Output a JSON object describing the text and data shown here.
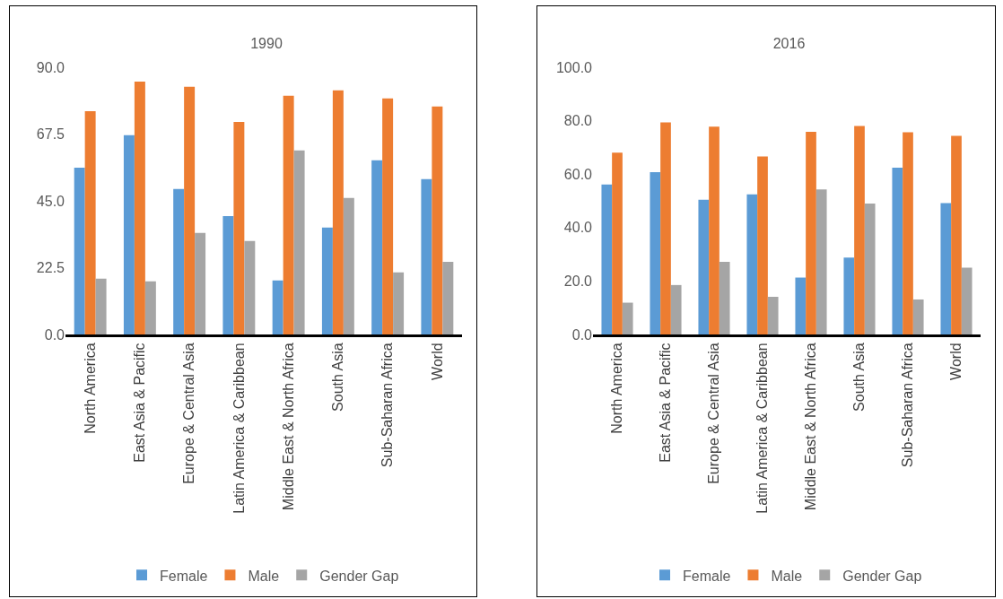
{
  "chart_data": [
    {
      "type": "bar",
      "title": "1990",
      "categories": [
        "North America",
        "East Asia & Pacific",
        "Europe & Central Asia",
        "Latin America & Caribbean",
        "Middle East & North Africa",
        "South Asia",
        "Sub-Saharan Africa",
        "World"
      ],
      "series": [
        {
          "name": "Female",
          "color": "#5b9bd5",
          "values": [
            56.2,
            67.1,
            49.0,
            39.9,
            18.2,
            36.0,
            58.7,
            52.3
          ]
        },
        {
          "name": "Male",
          "color": "#ed7d31",
          "values": [
            75.2,
            85.2,
            83.4,
            71.6,
            80.4,
            82.2,
            79.5,
            76.8
          ]
        },
        {
          "name": "Gender Gap",
          "color": "#a5a5a5",
          "values": [
            18.8,
            17.9,
            34.2,
            31.5,
            62.0,
            46.0,
            20.9,
            24.5
          ]
        }
      ],
      "ylim": [
        0,
        90
      ],
      "yticks": [
        {
          "value": 0,
          "label": "0.0"
        },
        {
          "value": 22.5,
          "label": "22.5"
        },
        {
          "value": 45,
          "label": "45.0"
        },
        {
          "value": 67.5,
          "label": "67.5"
        },
        {
          "value": 90,
          "label": "90.0"
        }
      ],
      "grid": false,
      "legend": "bottom"
    },
    {
      "type": "bar",
      "title": "2016",
      "categories": [
        "North America",
        "East Asia & Pacific",
        "Europe & Central Asia",
        "Latin America & Caribbean",
        "Middle East & North Africa",
        "South Asia",
        "Sub-Saharan Africa",
        "World"
      ],
      "series": [
        {
          "name": "Female",
          "color": "#5b9bd5",
          "values": [
            56.1,
            60.7,
            50.4,
            52.4,
            21.3,
            28.8,
            62.4,
            49.2
          ]
        },
        {
          "name": "Male",
          "color": "#ed7d31",
          "values": [
            68.0,
            79.4,
            77.8,
            66.6,
            75.8,
            78.0,
            75.7,
            74.3
          ]
        },
        {
          "name": "Gender Gap",
          "color": "#a5a5a5",
          "values": [
            11.9,
            18.5,
            27.2,
            14.1,
            54.3,
            49.0,
            13.1,
            25.0
          ]
        }
      ],
      "ylim": [
        0,
        100
      ],
      "yticks": [
        {
          "value": 0,
          "label": "0.0"
        },
        {
          "value": 20,
          "label": "20.0"
        },
        {
          "value": 40,
          "label": "40.0"
        },
        {
          "value": 60,
          "label": "60.0"
        },
        {
          "value": 80,
          "label": "80.0"
        },
        {
          "value": 100,
          "label": "100.0"
        }
      ],
      "grid": false,
      "legend": "bottom"
    }
  ]
}
